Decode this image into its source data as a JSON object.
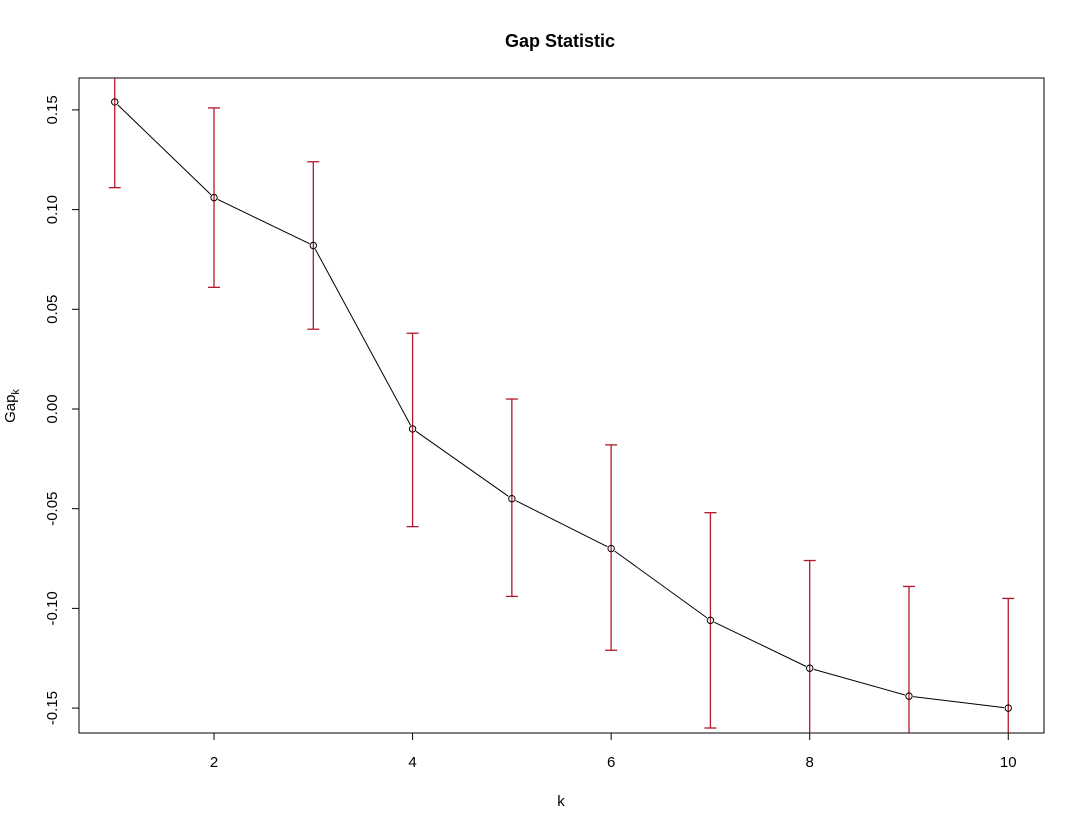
{
  "chart_data": {
    "type": "line",
    "title": "Gap Statistic",
    "xlabel": "k",
    "ylabel": "Gap",
    "ylabel_subscript": "k",
    "x": [
      1,
      2,
      3,
      4,
      5,
      6,
      7,
      8,
      9,
      10
    ],
    "series": [
      {
        "values": [
          0.154,
          0.106,
          0.082,
          -0.01,
          -0.045,
          -0.07,
          -0.106,
          -0.13,
          -0.144,
          -0.15
        ],
        "error_lower": [
          0.111,
          0.061,
          0.04,
          -0.059,
          -0.094,
          -0.121,
          -0.16,
          -0.185,
          -0.2,
          -0.205
        ],
        "error_upper": [
          0.197,
          0.151,
          0.124,
          0.038,
          0.005,
          -0.018,
          -0.052,
          -0.076,
          -0.089,
          -0.095
        ]
      }
    ],
    "x_ticks": [
      2,
      4,
      6,
      8,
      10
    ],
    "x_tick_labels": [
      "2",
      "4",
      "6",
      "8",
      "10"
    ],
    "y_ticks": [
      -0.15,
      -0.1,
      -0.05,
      0.0,
      0.05,
      0.1,
      0.15
    ],
    "y_tick_labels": [
      "-0.15",
      "-0.10",
      "-0.05",
      "0.00",
      "0.05",
      "0.10",
      "0.15"
    ],
    "xlim": [
      0.64,
      10.36
    ],
    "ylim": [
      -0.1625,
      0.166
    ],
    "grid": false,
    "colors": {
      "line": "#000000",
      "points": "#000000",
      "error_bars": "#b2182b",
      "frame": "#000000"
    }
  }
}
